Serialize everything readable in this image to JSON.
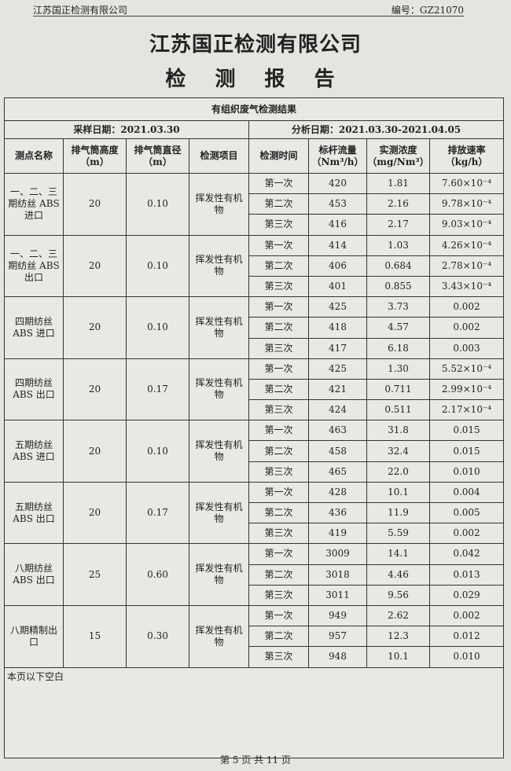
{
  "header": {
    "company": "江苏国正检测有限公司",
    "report_no": "编号：GZ21070"
  },
  "title": "江苏国正检测有限公司",
  "subtitle": "检 测 报 告",
  "table": {
    "caption": "有组织废气检测结果",
    "sampling_date": "采样日期：2021.03.30",
    "analysis_date": "分析日期：2021.03.30-2021.04.05",
    "columns": [
      "测点名称",
      "排气筒高度（m）",
      "排气筒直径（m）",
      "检测项目",
      "检测时间",
      "标杆流量（Nm³/h）",
      "实测浓度（mg/Nm³）",
      "排放速率（kg/h）"
    ],
    "groups": [
      {
        "point": "一、二、三期纺丝 ABS 进口",
        "height": "20",
        "diameter": "0.10",
        "item": "挥发性有机物",
        "rows": [
          [
            "第一次",
            "420",
            "1.81",
            "7.60×10⁻⁴"
          ],
          [
            "第二次",
            "453",
            "2.16",
            "9.78×10⁻⁴"
          ],
          [
            "第三次",
            "416",
            "2.17",
            "9.03×10⁻⁴"
          ]
        ]
      },
      {
        "point": "一、二、三期纺丝 ABS 出口",
        "height": "20",
        "diameter": "0.10",
        "item": "挥发性有机物",
        "rows": [
          [
            "第一次",
            "414",
            "1.03",
            "4.26×10⁻⁴"
          ],
          [
            "第二次",
            "406",
            "0.684",
            "2.78×10⁻⁴"
          ],
          [
            "第三次",
            "401",
            "0.855",
            "3.43×10⁻⁴"
          ]
        ]
      },
      {
        "point": "四期纺丝 ABS 进口",
        "height": "20",
        "diameter": "0.10",
        "item": "挥发性有机物",
        "rows": [
          [
            "第一次",
            "425",
            "3.73",
            "0.002"
          ],
          [
            "第二次",
            "418",
            "4.57",
            "0.002"
          ],
          [
            "第三次",
            "417",
            "6.18",
            "0.003"
          ]
        ]
      },
      {
        "point": "四期纺丝 ABS 出口",
        "height": "20",
        "diameter": "0.17",
        "item": "挥发性有机物",
        "rows": [
          [
            "第一次",
            "425",
            "1.30",
            "5.52×10⁻⁴"
          ],
          [
            "第二次",
            "421",
            "0.711",
            "2.99×10⁻⁴"
          ],
          [
            "第三次",
            "424",
            "0.511",
            "2.17×10⁻⁴"
          ]
        ]
      },
      {
        "point": "五期纺丝 ABS 进口",
        "height": "20",
        "diameter": "0.10",
        "item": "挥发性有机物",
        "rows": [
          [
            "第一次",
            "463",
            "31.8",
            "0.015"
          ],
          [
            "第二次",
            "458",
            "32.4",
            "0.015"
          ],
          [
            "第三次",
            "465",
            "22.0",
            "0.010"
          ]
        ]
      },
      {
        "point": "五期纺丝 ABS 出口",
        "height": "20",
        "diameter": "0.17",
        "item": "挥发性有机物",
        "rows": [
          [
            "第一次",
            "428",
            "10.1",
            "0.004"
          ],
          [
            "第二次",
            "436",
            "11.9",
            "0.005"
          ],
          [
            "第三次",
            "419",
            "5.59",
            "0.002"
          ]
        ]
      },
      {
        "point": "八期纺丝 ABS 出口",
        "height": "25",
        "diameter": "0.60",
        "item": "挥发性有机物",
        "rows": [
          [
            "第一次",
            "3009",
            "14.1",
            "0.042"
          ],
          [
            "第二次",
            "3018",
            "4.46",
            "0.013"
          ],
          [
            "第三次",
            "3011",
            "9.56",
            "0.029"
          ]
        ]
      },
      {
        "point": "八期精制出口",
        "height": "15",
        "diameter": "0.30",
        "item": "挥发性有机物",
        "rows": [
          [
            "第一次",
            "949",
            "2.62",
            "0.002"
          ],
          [
            "第二次",
            "957",
            "12.3",
            "0.012"
          ],
          [
            "第三次",
            "948",
            "10.1",
            "0.010"
          ]
        ]
      }
    ],
    "blank_note": "本页以下空白"
  },
  "footer": "第 5 页 共 11 页"
}
